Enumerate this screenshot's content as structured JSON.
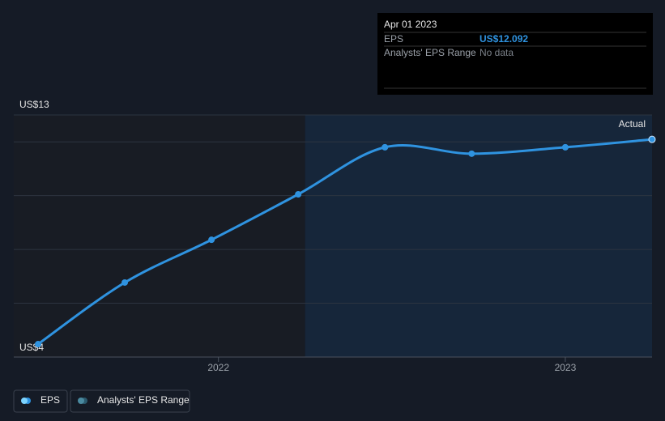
{
  "chart_data": {
    "type": "line",
    "x": [
      2021.48,
      2021.73,
      2021.98,
      2022.23,
      2022.48,
      2022.73,
      2023.0,
      2023.25
    ],
    "series": [
      {
        "name": "EPS",
        "color": "#2f93e0",
        "values": [
          4.48,
          6.77,
          8.36,
          10.05,
          11.8,
          11.56,
          11.8,
          12.092
        ]
      }
    ],
    "extra_legend": [
      {
        "name": "Analysts' EPS Range",
        "color": "#2b5a6e"
      }
    ],
    "xlim": [
      2021.41,
      2023.25
    ],
    "xticks": [
      2022,
      2023
    ],
    "ylim": [
      4,
      13
    ],
    "yticks": [
      {
        "value": 13,
        "label": "US$13"
      },
      {
        "value": 4,
        "label": "US$4"
      }
    ],
    "ygrid": [
      6,
      8,
      10,
      12
    ],
    "region": {
      "label": "Actual",
      "from": 2022.25
    },
    "tooltip": {
      "date": "Apr 01 2023",
      "rows": [
        [
          "EPS",
          "US$12.092"
        ],
        [
          "Analysts' EPS Range",
          "No data"
        ]
      ]
    }
  }
}
